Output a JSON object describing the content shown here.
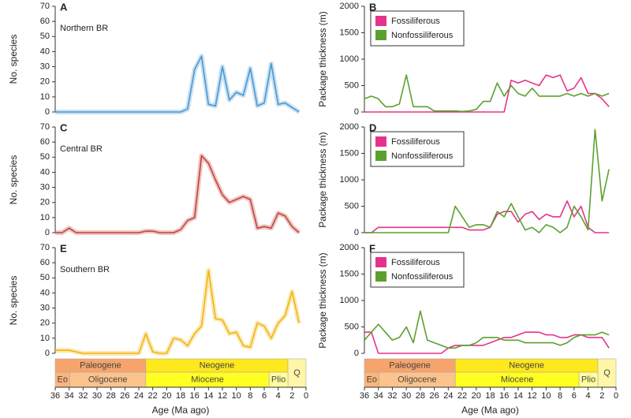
{
  "chart_data": [
    {
      "type": "line",
      "title": "A",
      "subtitle": "Northern BR",
      "ylabel": "No. species",
      "xlim": [
        36,
        0
      ],
      "ylim": [
        0,
        70
      ],
      "yticks": [
        0,
        10,
        20,
        30,
        40,
        50,
        60,
        70
      ],
      "x": [
        36,
        35,
        34,
        33,
        32,
        31,
        30,
        29,
        28,
        27,
        26,
        25,
        24,
        23,
        22,
        21,
        20,
        19,
        18,
        17,
        16,
        15,
        14,
        13,
        12,
        11,
        10,
        9,
        8,
        7,
        6,
        5,
        4,
        3,
        2,
        1
      ],
      "series": [
        {
          "name": "Northern BR",
          "color": "#4a98d3",
          "values": [
            0,
            0,
            0,
            0,
            0,
            0,
            0,
            0,
            0,
            0,
            0,
            0,
            0,
            0,
            0,
            0,
            0,
            0,
            0,
            2,
            28,
            37,
            5,
            4,
            30,
            8,
            13,
            11,
            29,
            4,
            6,
            32,
            5,
            6,
            3,
            0
          ]
        }
      ]
    },
    {
      "type": "line",
      "title": "B",
      "ylabel": "Package thickness (m)",
      "legend": "upper left",
      "xlim": [
        36,
        0
      ],
      "ylim": [
        0,
        2000
      ],
      "yticks": [
        0,
        500,
        1000,
        1500,
        2000
      ],
      "x": [
        36,
        35,
        34,
        33,
        32,
        31,
        30,
        29,
        28,
        27,
        26,
        25,
        24,
        23,
        22,
        21,
        20,
        19,
        18,
        17,
        16,
        15,
        14,
        13,
        12,
        11,
        10,
        9,
        8,
        7,
        6,
        5,
        4,
        3,
        2,
        1
      ],
      "series": [
        {
          "name": "Fossiliferous",
          "color": "#e5338c",
          "values": [
            0,
            0,
            0,
            0,
            0,
            0,
            0,
            0,
            0,
            0,
            0,
            0,
            0,
            0,
            0,
            0,
            0,
            0,
            0,
            0,
            0,
            600,
            550,
            600,
            550,
            500,
            700,
            650,
            700,
            400,
            450,
            650,
            350,
            350,
            250,
            100
          ]
        },
        {
          "name": "Nonfossiliferous",
          "color": "#5ba02e",
          "values": [
            250,
            300,
            250,
            100,
            100,
            150,
            700,
            100,
            100,
            100,
            20,
            20,
            20,
            20,
            10,
            20,
            50,
            200,
            200,
            550,
            300,
            500,
            350,
            300,
            450,
            300,
            300,
            300,
            300,
            350,
            300,
            350,
            300,
            350,
            300,
            350
          ]
        }
      ]
    },
    {
      "type": "line",
      "title": "C",
      "subtitle": "Central BR",
      "ylabel": "No. species",
      "xlim": [
        36,
        0
      ],
      "ylim": [
        0,
        70
      ],
      "yticks": [
        0,
        10,
        20,
        30,
        40,
        50,
        60,
        70
      ],
      "x": [
        36,
        35,
        34,
        33,
        32,
        31,
        30,
        29,
        28,
        27,
        26,
        25,
        24,
        23,
        22,
        21,
        20,
        19,
        18,
        17,
        16,
        15,
        14,
        13,
        12,
        11,
        10,
        9,
        8,
        7,
        6,
        5,
        4,
        3,
        2,
        1
      ],
      "series": [
        {
          "name": "Central BR",
          "color": "#c4443a",
          "values": [
            0,
            0,
            3,
            0,
            0,
            0,
            0,
            0,
            0,
            0,
            0,
            0,
            0,
            1,
            1,
            0,
            0,
            0,
            2,
            8,
            10,
            51,
            46,
            35,
            25,
            20,
            22,
            24,
            22,
            3,
            4,
            3,
            13,
            11,
            4,
            0
          ]
        }
      ]
    },
    {
      "type": "line",
      "title": "D",
      "ylabel": "Package thickness (m)",
      "legend": "upper left",
      "xlim": [
        36,
        0
      ],
      "ylim": [
        0,
        2000
      ],
      "yticks": [
        0,
        500,
        1000,
        1500,
        2000
      ],
      "x": [
        36,
        35,
        34,
        33,
        32,
        31,
        30,
        29,
        28,
        27,
        26,
        25,
        24,
        23,
        22,
        21,
        20,
        19,
        18,
        17,
        16,
        15,
        14,
        13,
        12,
        11,
        10,
        9,
        8,
        7,
        6,
        5,
        4,
        3,
        2,
        1
      ],
      "series": [
        {
          "name": "Fossiliferous",
          "color": "#e5338c",
          "values": [
            0,
            0,
            100,
            100,
            100,
            100,
            100,
            100,
            100,
            100,
            100,
            100,
            100,
            100,
            100,
            50,
            50,
            50,
            100,
            350,
            400,
            400,
            200,
            350,
            400,
            250,
            350,
            300,
            300,
            600,
            300,
            500,
            100,
            0,
            0,
            0
          ]
        },
        {
          "name": "Nonfossiliferous",
          "color": "#5ba02e",
          "values": [
            0,
            0,
            0,
            0,
            0,
            0,
            0,
            0,
            0,
            0,
            0,
            0,
            0,
            500,
            300,
            100,
            150,
            150,
            100,
            400,
            300,
            550,
            300,
            50,
            100,
            0,
            150,
            100,
            0,
            100,
            500,
            300,
            50,
            1950,
            600,
            1200
          ]
        }
      ]
    },
    {
      "type": "line",
      "title": "E",
      "subtitle": "Southern BR",
      "ylabel": "No. species",
      "xlabel": "Age (Ma ago)",
      "xlim": [
        36,
        0
      ],
      "xticks": [
        36,
        34,
        32,
        30,
        28,
        26,
        24,
        22,
        20,
        18,
        16,
        14,
        12,
        10,
        8,
        6,
        4,
        2,
        0
      ],
      "ylim": [
        0,
        70
      ],
      "yticks": [
        0,
        10,
        20,
        30,
        40,
        50,
        60,
        70
      ],
      "x": [
        36,
        35,
        34,
        33,
        32,
        31,
        30,
        29,
        28,
        27,
        26,
        25,
        24,
        23,
        22,
        21,
        20,
        19,
        18,
        17,
        16,
        15,
        14,
        13,
        12,
        11,
        10,
        9,
        8,
        7,
        6,
        5,
        4,
        3,
        2,
        1
      ],
      "series": [
        {
          "name": "Southern BR",
          "color": "#f2b50f",
          "values": [
            2,
            2,
            2,
            1,
            0,
            0,
            0,
            0,
            0,
            0,
            0,
            0,
            0,
            13,
            1,
            0,
            0,
            10,
            9,
            5,
            13,
            18,
            55,
            23,
            22,
            13,
            14,
            5,
            4,
            20,
            18,
            10,
            20,
            25,
            41,
            20
          ]
        }
      ]
    },
    {
      "type": "line",
      "title": "F",
      "ylabel": "Package thickness (m)",
      "xlabel": "Age (Ma ago)",
      "legend": "upper left",
      "xlim": [
        36,
        0
      ],
      "xticks": [
        36,
        34,
        32,
        30,
        28,
        26,
        24,
        22,
        20,
        18,
        16,
        14,
        12,
        10,
        8,
        6,
        4,
        2,
        0
      ],
      "ylim": [
        0,
        2000
      ],
      "yticks": [
        0,
        500,
        1000,
        1500,
        2000
      ],
      "x": [
        36,
        35,
        34,
        33,
        32,
        31,
        30,
        29,
        28,
        27,
        26,
        25,
        24,
        23,
        22,
        21,
        20,
        19,
        18,
        17,
        16,
        15,
        14,
        13,
        12,
        11,
        10,
        9,
        8,
        7,
        6,
        5,
        4,
        3,
        2,
        1
      ],
      "series": [
        {
          "name": "Fossiliferous",
          "color": "#e5338c",
          "values": [
            400,
            400,
            0,
            0,
            0,
            0,
            0,
            0,
            0,
            0,
            0,
            0,
            100,
            150,
            150,
            150,
            150,
            150,
            200,
            250,
            300,
            300,
            350,
            400,
            400,
            400,
            350,
            350,
            300,
            300,
            350,
            350,
            300,
            300,
            300,
            100
          ]
        },
        {
          "name": "Nonfossiliferous",
          "color": "#5ba02e",
          "values": [
            250,
            400,
            550,
            400,
            250,
            300,
            500,
            200,
            800,
            250,
            200,
            150,
            100,
            100,
            150,
            150,
            200,
            300,
            300,
            300,
            250,
            250,
            250,
            200,
            200,
            200,
            200,
            200,
            150,
            200,
            300,
            350,
            350,
            350,
            400,
            350
          ]
        }
      ]
    }
  ],
  "timescale": {
    "periods": [
      {
        "name": "Paleogene",
        "start": 36,
        "end": 23,
        "color": "#f6a46c"
      },
      {
        "name": "Neogene",
        "start": 23,
        "end": 2.6,
        "color": "#ffe81c"
      },
      {
        "name": "Q",
        "start": 2.6,
        "end": 0,
        "color": "#fff6a8"
      }
    ],
    "epochs": [
      {
        "name": "Eo",
        "start": 36,
        "end": 33.9,
        "color": "#fdb47a"
      },
      {
        "name": "Oligocene",
        "start": 33.9,
        "end": 23,
        "color": "#fdc38c"
      },
      {
        "name": "Miocene",
        "start": 23,
        "end": 5.3,
        "color": "#ffff22"
      },
      {
        "name": "Plio",
        "start": 5.3,
        "end": 2.6,
        "color": "#ffff9e"
      }
    ]
  }
}
